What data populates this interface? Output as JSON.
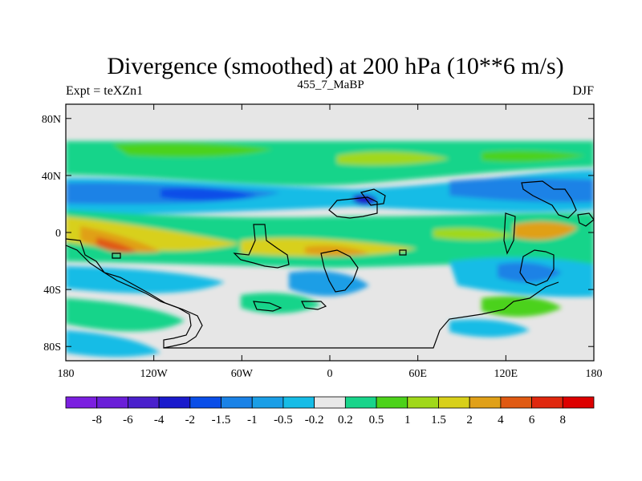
{
  "chart_data": {
    "type": "heatmap",
    "title": "Divergence (smoothed) at 200 hPa (10**6 m/s)",
    "left_label": "Expt = teXZn1",
    "center_label": "455_7_MaBP",
    "right_label": "DJF",
    "x_ticks": [
      "180",
      "120W",
      "60W",
      "0",
      "60E",
      "120E",
      "180"
    ],
    "x_tick_values": [
      -180,
      -120,
      -60,
      0,
      60,
      120,
      180
    ],
    "y_ticks": [
      "80N",
      "40N",
      "0",
      "40S",
      "80S"
    ],
    "y_tick_values": [
      80,
      40,
      0,
      -40,
      -80
    ],
    "xlim": [
      -180,
      180
    ],
    "ylim": [
      -90,
      90
    ],
    "colorbar_levels": [
      "-8",
      "-6",
      "-4",
      "-2",
      "-1.5",
      "-1",
      "-0.5",
      "-0.2",
      "0.2",
      "0.5",
      "1",
      "1.5",
      "2",
      "4",
      "6",
      "8"
    ],
    "colorbar_colors": [
      "#7b1fe0",
      "#6a1ed8",
      "#4a20cc",
      "#1a1acc",
      "#0a4ee8",
      "#1a82e6",
      "#1a9ee6",
      "#16bce6",
      "#e8e8e8",
      "#18d48a",
      "#4cd21a",
      "#a0d81a",
      "#d8d01a",
      "#e0a018",
      "#e05a12",
      "#e0280e",
      "#dd0000"
    ]
  }
}
